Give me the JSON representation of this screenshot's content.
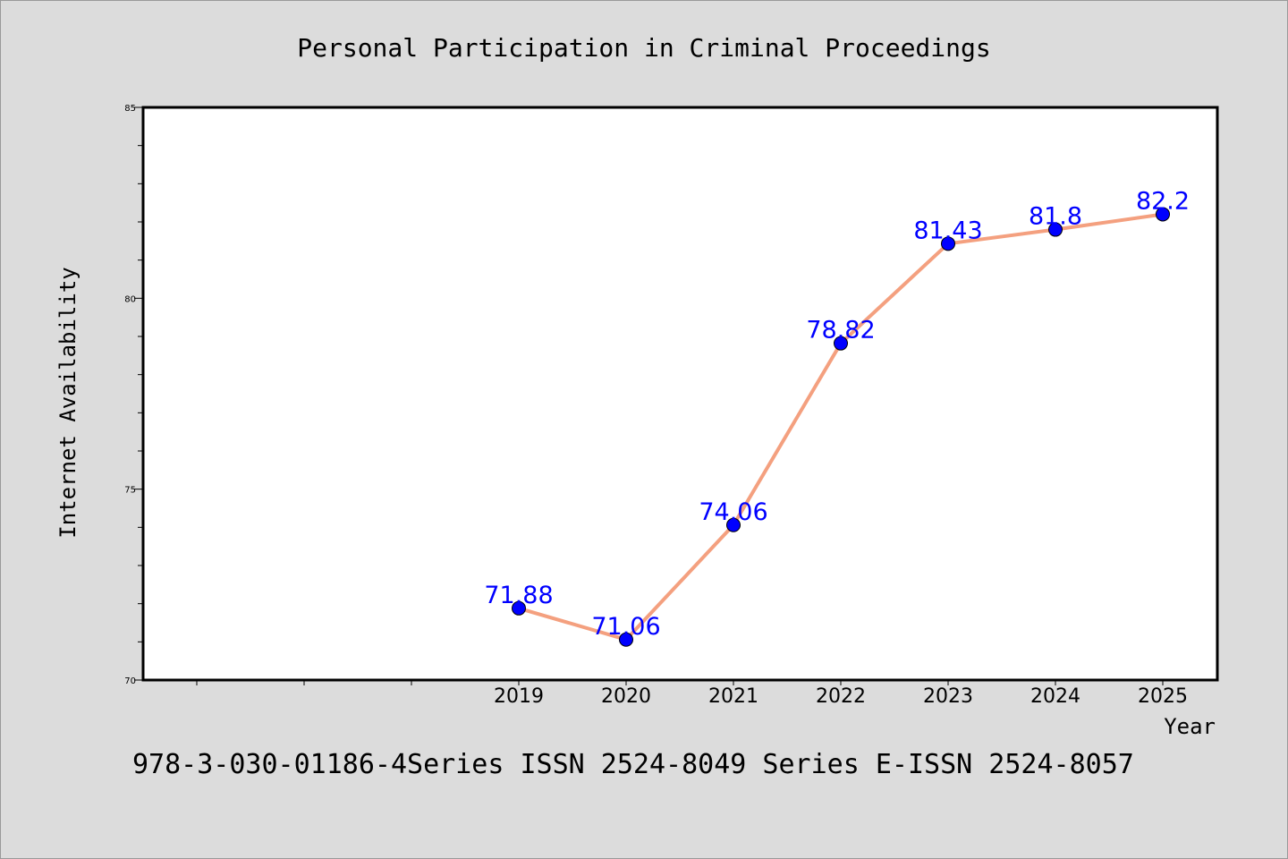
{
  "chart_data": {
    "type": "line",
    "title": "Personal Participation in Criminal Proceedings",
    "xlabel": "Year",
    "ylabel": "Internet Availability",
    "categories": [
      "2019",
      "2020",
      "2021",
      "2022",
      "2023",
      "2024",
      "2025"
    ],
    "series": [
      {
        "values": [
          71.88,
          71.06,
          74.06,
          78.82,
          81.43,
          81.8,
          82.2
        ]
      }
    ],
    "data_labels": [
      "71.88",
      "71.06",
      "74.06",
      "78.82",
      "81.43",
      "81.8",
      "82.2"
    ],
    "ylim": [
      70,
      85
    ],
    "y_ticks": [
      "70",
      "75",
      "80",
      "85"
    ],
    "grid": false,
    "colors": {
      "line": "#f4a07f",
      "marker": "#0000ff",
      "label": "#0000ff",
      "background": "#dcdcdc",
      "plot_bg": "#ffffff"
    }
  },
  "footer_text": "978-3-030-01186-4Series ISSN 2524-8049 Series E-ISSN 2524-8057"
}
